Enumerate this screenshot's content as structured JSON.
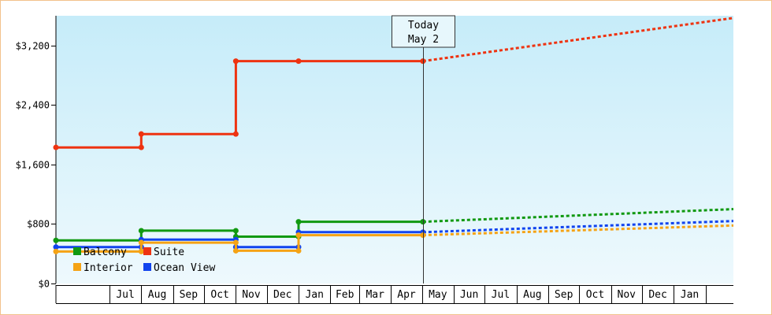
{
  "chart_data": {
    "type": "line",
    "title": "",
    "xlabel": "",
    "ylabel": "",
    "ylim": [
      0,
      3600
    ],
    "yticks": [
      {
        "value": 0,
        "label": "$0"
      },
      {
        "value": 800,
        "label": "$800"
      },
      {
        "value": 1600,
        "label": "$1,600"
      },
      {
        "value": 2400,
        "label": "$2,400"
      },
      {
        "value": 3200,
        "label": "$3,200"
      }
    ],
    "x_range": [
      "2021-05-10",
      "2023-02-28"
    ],
    "months": [
      {
        "label": "Jul",
        "start": "2021-07-01",
        "end": "2021-08-01"
      },
      {
        "label": "Aug",
        "start": "2021-08-01",
        "end": "2021-09-01"
      },
      {
        "label": "Sep",
        "start": "2021-09-01",
        "end": "2021-10-01"
      },
      {
        "label": "Oct",
        "start": "2021-10-01",
        "end": "2021-11-01"
      },
      {
        "label": "Nov",
        "start": "2021-11-01",
        "end": "2021-12-01"
      },
      {
        "label": "Dec",
        "start": "2021-12-01",
        "end": "2022-01-01"
      },
      {
        "label": "Jan",
        "start": "2022-01-01",
        "end": "2022-02-01"
      },
      {
        "label": "Feb",
        "start": "2022-02-01",
        "end": "2022-03-01"
      },
      {
        "label": "Mar",
        "start": "2022-03-01",
        "end": "2022-04-01"
      },
      {
        "label": "Apr",
        "start": "2022-04-01",
        "end": "2022-05-01"
      },
      {
        "label": "May",
        "start": "2022-05-01",
        "end": "2022-06-01"
      },
      {
        "label": "Jun",
        "start": "2022-06-01",
        "end": "2022-07-01"
      },
      {
        "label": "Jul",
        "start": "2022-07-01",
        "end": "2022-08-01"
      },
      {
        "label": "Aug",
        "start": "2022-08-01",
        "end": "2022-09-01"
      },
      {
        "label": "Sep",
        "start": "2022-09-01",
        "end": "2022-10-01"
      },
      {
        "label": "Oct",
        "start": "2022-10-01",
        "end": "2022-11-01"
      },
      {
        "label": "Nov",
        "start": "2022-11-01",
        "end": "2022-12-01"
      },
      {
        "label": "Dec",
        "start": "2022-12-01",
        "end": "2023-01-01"
      },
      {
        "label": "Jan",
        "start": "2023-01-01",
        "end": "2023-02-01"
      }
    ],
    "today": {
      "line1": "Today",
      "line2": "May 2",
      "date": "2022-05-02"
    },
    "series": [
      {
        "name": "Suite",
        "color": "#ee3311",
        "history": [
          [
            "2021-05-10",
            1830
          ],
          [
            "2021-08-01",
            1830
          ],
          [
            "2021-08-01",
            2010
          ],
          [
            "2021-11-01",
            2010
          ],
          [
            "2021-11-01",
            2990
          ],
          [
            "2022-01-01",
            2990
          ],
          [
            "2022-05-02",
            2990
          ]
        ],
        "forecast": [
          [
            "2022-05-02",
            2990
          ],
          [
            "2023-02-28",
            3570
          ]
        ]
      },
      {
        "name": "Balcony",
        "color": "#119911",
        "history": [
          [
            "2021-05-10",
            580
          ],
          [
            "2021-08-01",
            580
          ],
          [
            "2021-08-01",
            710
          ],
          [
            "2021-11-01",
            710
          ],
          [
            "2021-11-01",
            630
          ],
          [
            "2022-01-01",
            630
          ],
          [
            "2022-01-01",
            830
          ],
          [
            "2022-05-02",
            830
          ]
        ],
        "forecast": [
          [
            "2022-05-02",
            830
          ],
          [
            "2023-02-28",
            1000
          ]
        ]
      },
      {
        "name": "Ocean View",
        "color": "#1144ee",
        "history": [
          [
            "2021-05-10",
            490
          ],
          [
            "2021-08-01",
            490
          ],
          [
            "2021-08-01",
            590
          ],
          [
            "2021-11-01",
            590
          ],
          [
            "2021-11-01",
            490
          ],
          [
            "2022-01-01",
            490
          ],
          [
            "2022-01-01",
            690
          ],
          [
            "2022-05-02",
            690
          ]
        ],
        "forecast": [
          [
            "2022-05-02",
            690
          ],
          [
            "2023-02-28",
            840
          ]
        ]
      },
      {
        "name": "Interior",
        "color": "#f5a315",
        "history": [
          [
            "2021-05-10",
            430
          ],
          [
            "2021-08-01",
            430
          ],
          [
            "2021-08-01",
            550
          ],
          [
            "2021-11-01",
            550
          ],
          [
            "2021-11-01",
            440
          ],
          [
            "2022-01-01",
            440
          ],
          [
            "2022-01-01",
            650
          ],
          [
            "2022-05-02",
            650
          ]
        ],
        "forecast": [
          [
            "2022-05-02",
            650
          ],
          [
            "2023-02-28",
            780
          ]
        ]
      }
    ],
    "legend": {
      "placement": "bottom-left",
      "order": [
        "Balcony",
        "Suite",
        "Interior",
        "Ocean View"
      ]
    },
    "colors": {
      "plot_top": "#c6ecf9",
      "plot_bottom": "#eef9fd",
      "frame_border": "#f2c28c"
    }
  }
}
